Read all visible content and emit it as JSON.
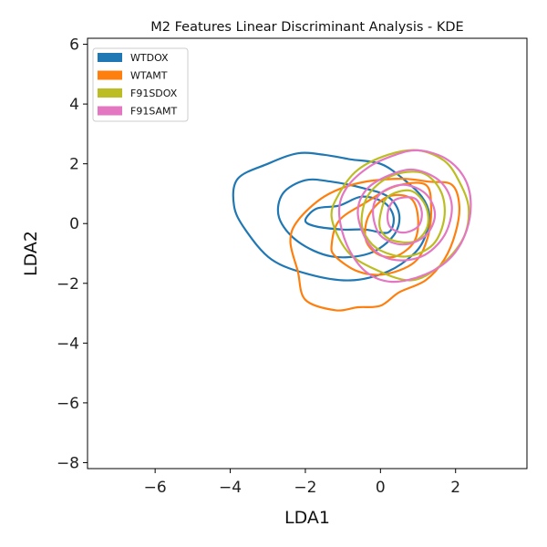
{
  "chart_data": {
    "type": "kde_contour",
    "title": "M2 Features Linear Discriminant Analysis - KDE",
    "xlabel": "LDA1",
    "ylabel": "LDA2",
    "xlim": [
      -7.8,
      3.9
    ],
    "ylim": [
      -8.2,
      6.2
    ],
    "xticks": [
      -6,
      -4,
      -2,
      0,
      2
    ],
    "yticks": [
      -8,
      -6,
      -4,
      -2,
      0,
      2,
      4,
      6
    ],
    "xtick_labels": [
      "−6",
      "−4",
      "−2",
      "0",
      "2"
    ],
    "ytick_labels": [
      "−8",
      "−6",
      "−4",
      "−2",
      "0",
      "2",
      "4",
      "6"
    ],
    "grid": false,
    "legend_position": "top-left",
    "series": [
      {
        "name": "WTDOX",
        "color": "#1f77b4",
        "contours": [
          {
            "level": 1,
            "points": [
              [
                -3.6,
                -0.2
              ],
              [
                -3.9,
                0.6
              ],
              [
                -3.8,
                1.5
              ],
              [
                -3.0,
                2.0
              ],
              [
                -2.2,
                2.35
              ],
              [
                -1.5,
                2.3
              ],
              [
                -0.8,
                2.15
              ],
              [
                0.0,
                2.0
              ],
              [
                0.6,
                1.5
              ],
              [
                1.1,
                0.9
              ],
              [
                1.3,
                0.3
              ],
              [
                1.2,
                -0.4
              ],
              [
                0.9,
                -1.0
              ],
              [
                0.2,
                -1.6
              ],
              [
                -0.8,
                -1.9
              ],
              [
                -1.9,
                -1.7
              ],
              [
                -2.9,
                -1.2
              ]
            ]
          },
          {
            "level": 2,
            "points": [
              [
                -2.7,
                0.2
              ],
              [
                -2.6,
                1.0
              ],
              [
                -2.0,
                1.45
              ],
              [
                -1.3,
                1.4
              ],
              [
                -0.5,
                1.2
              ],
              [
                0.2,
                0.9
              ],
              [
                0.5,
                0.3
              ],
              [
                0.35,
                -0.4
              ],
              [
                -0.3,
                -1.0
              ],
              [
                -1.3,
                -1.1
              ],
              [
                -2.2,
                -0.6
              ]
            ]
          },
          {
            "level": 3,
            "points": [
              [
                -2.0,
                0.1
              ],
              [
                -1.7,
                0.5
              ],
              [
                -1.1,
                0.6
              ],
              [
                -0.5,
                0.9
              ],
              [
                0.1,
                0.7
              ],
              [
                0.35,
                0.2
              ],
              [
                0.2,
                -0.3
              ],
              [
                -0.4,
                -0.2
              ],
              [
                -1.0,
                -0.2
              ],
              [
                -1.7,
                -0.1
              ]
            ]
          }
        ]
      },
      {
        "name": "WTAMT",
        "color": "#ff7f0e",
        "contours": [
          {
            "level": 1,
            "points": [
              [
                -2.4,
                -0.6
              ],
              [
                -2.2,
                0.1
              ],
              [
                -1.5,
                0.9
              ],
              [
                -0.6,
                1.35
              ],
              [
                0.5,
                1.5
              ],
              [
                1.3,
                1.4
              ],
              [
                1.9,
                1.3
              ],
              [
                2.1,
                0.6
              ],
              [
                2.0,
                -0.3
              ],
              [
                1.7,
                -1.2
              ],
              [
                1.2,
                -1.9
              ],
              [
                0.5,
                -2.3
              ],
              [
                0.0,
                -2.75
              ],
              [
                -0.6,
                -2.8
              ],
              [
                -1.2,
                -2.9
              ],
              [
                -2.0,
                -2.55
              ],
              [
                -2.2,
                -1.6
              ]
            ]
          },
          {
            "level": 2,
            "points": [
              [
                -1.3,
                -0.7
              ],
              [
                -1.1,
                0.1
              ],
              [
                -0.4,
                0.7
              ],
              [
                0.4,
                1.25
              ],
              [
                1.2,
                1.3
              ],
              [
                1.35,
                0.5
              ],
              [
                1.25,
                -0.5
              ],
              [
                0.9,
                -1.3
              ],
              [
                0.1,
                -1.7
              ],
              [
                -0.6,
                -1.6
              ],
              [
                -1.2,
                -1.1
              ]
            ]
          },
          {
            "level": 3,
            "points": [
              [
                -0.4,
                -0.5
              ],
              [
                -0.3,
                0.3
              ],
              [
                0.2,
                0.9
              ],
              [
                0.8,
                0.85
              ],
              [
                1.0,
                0.2
              ],
              [
                0.9,
                -0.6
              ],
              [
                0.4,
                -1.1
              ],
              [
                -0.1,
                -1.0
              ]
            ]
          }
        ]
      },
      {
        "name": "F91SDOX",
        "color": "#bcbd22",
        "contours": [
          {
            "level": 1,
            "points": [
              [
                -1.3,
                0.2
              ],
              [
                -1.1,
                1.0
              ],
              [
                -0.6,
                1.8
              ],
              [
                0.2,
                2.3
              ],
              [
                1.0,
                2.45
              ],
              [
                1.7,
                2.1
              ],
              [
                2.1,
                1.4
              ],
              [
                2.35,
                0.5
              ],
              [
                2.2,
                -0.5
              ],
              [
                1.6,
                -1.4
              ],
              [
                0.8,
                -1.9
              ],
              [
                -0.2,
                -1.5
              ],
              [
                -0.9,
                -0.9
              ]
            ]
          },
          {
            "level": 2,
            "points": [
              [
                -0.5,
                0.2
              ],
              [
                -0.3,
                1.0
              ],
              [
                0.3,
                1.6
              ],
              [
                1.1,
                1.7
              ],
              [
                1.6,
                1.1
              ],
              [
                1.7,
                0.2
              ],
              [
                1.4,
                -0.7
              ],
              [
                0.7,
                -1.1
              ],
              [
                0.0,
                -0.9
              ],
              [
                -0.4,
                -0.4
              ]
            ]
          },
          {
            "level": 3,
            "points": [
              [
                0.0,
                0.3
              ],
              [
                0.2,
                0.9
              ],
              [
                0.8,
                1.1
              ],
              [
                1.2,
                0.6
              ],
              [
                1.25,
                -0.1
              ],
              [
                0.9,
                -0.6
              ],
              [
                0.3,
                -0.55
              ],
              [
                0.0,
                -0.2
              ]
            ]
          }
        ]
      },
      {
        "name": "F91SAMT",
        "color": "#e377c2",
        "contours": [
          {
            "level": 1,
            "points": [
              [
                -1.1,
                0.4
              ],
              [
                -0.9,
                1.2
              ],
              [
                -0.3,
                1.9
              ],
              [
                0.4,
                2.3
              ],
              [
                1.0,
                2.45
              ],
              [
                1.7,
                2.2
              ],
              [
                2.2,
                1.6
              ],
              [
                2.4,
                0.8
              ],
              [
                2.3,
                -0.2
              ],
              [
                1.9,
                -1.1
              ],
              [
                1.2,
                -1.7
              ],
              [
                0.3,
                -1.95
              ],
              [
                -0.4,
                -1.6
              ],
              [
                -0.9,
                -0.7
              ]
            ]
          },
          {
            "level": 2,
            "points": [
              [
                -0.6,
                0.3
              ],
              [
                -0.4,
                1.1
              ],
              [
                0.2,
                1.6
              ],
              [
                0.9,
                1.8
              ],
              [
                1.6,
                1.4
              ],
              [
                1.9,
                0.6
              ],
              [
                1.7,
                -0.4
              ],
              [
                1.1,
                -1.1
              ],
              [
                0.3,
                -1.2
              ],
              [
                -0.3,
                -0.7
              ]
            ]
          },
          {
            "level": 3,
            "points": [
              [
                -0.2,
                0.4
              ],
              [
                0.0,
                1.0
              ],
              [
                0.6,
                1.3
              ],
              [
                1.2,
                1.0
              ],
              [
                1.45,
                0.3
              ],
              [
                1.2,
                -0.4
              ],
              [
                0.6,
                -0.7
              ],
              [
                0.0,
                -0.4
              ]
            ]
          },
          {
            "level": 4,
            "points": [
              [
                0.2,
                0.4
              ],
              [
                0.4,
                0.8
              ],
              [
                0.9,
                0.85
              ],
              [
                1.1,
                0.4
              ],
              [
                1.0,
                -0.1
              ],
              [
                0.6,
                -0.3
              ],
              [
                0.25,
                -0.1
              ]
            ]
          }
        ]
      }
    ]
  }
}
